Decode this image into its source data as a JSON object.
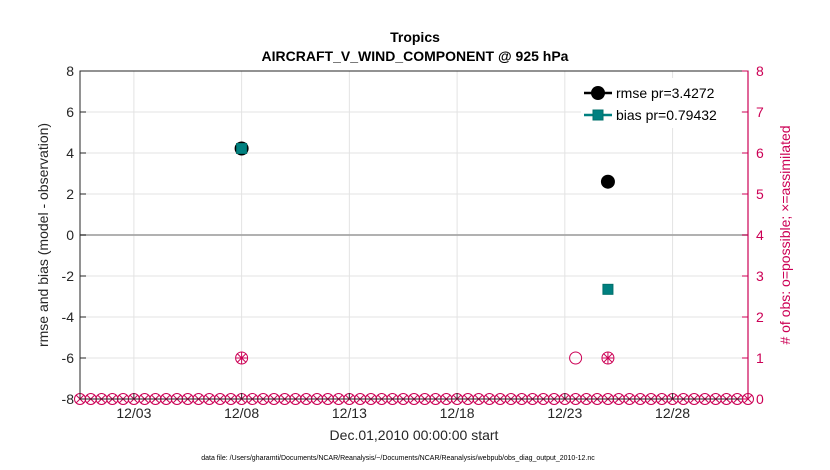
{
  "chart_data": {
    "type": "line",
    "title": "Tropics",
    "subtitle": "AIRCRAFT_V_WIND_COMPONENT @ 925 hPa",
    "xlabel": "Dec.01,2010 00:00:00 start",
    "ylabel": "rmse and bias (model - observation)",
    "y2label": "# of obs: o=possible; ×=assimilated",
    "footnote": "data file: /Users/gharamti/Documents/NCAR/Reanalysis/~/Documents/NCAR/Reanalysis/webpub/obs_diag_output_2010-12.nc",
    "xlim": [
      0.5,
      31.5
    ],
    "ylim": [
      -8,
      8
    ],
    "y2lim": [
      0,
      8
    ],
    "x_ticks": [
      3,
      8,
      13,
      18,
      23,
      28
    ],
    "x_tick_labels": [
      "12/03",
      "12/08",
      "12/13",
      "12/18",
      "12/23",
      "12/28"
    ],
    "y_ticks": [
      -8,
      -6,
      -4,
      -2,
      0,
      2,
      4,
      6,
      8
    ],
    "y_tick_labels": [
      "-8",
      "-6",
      "-4",
      "-2",
      "0",
      "2",
      "4",
      "6",
      "8"
    ],
    "y2_ticks": [
      0,
      1,
      2,
      3,
      4,
      5,
      6,
      7,
      8
    ],
    "y2_tick_labels": [
      "0",
      "1",
      "2",
      "3",
      "4",
      "5",
      "6",
      "7",
      "8"
    ],
    "zero_line": 0,
    "series": [
      {
        "name": "rmse",
        "legend": "rmse pr=3.4272",
        "color": "#000000",
        "marker": "circle",
        "axis": "left",
        "points": [
          {
            "x": 8,
            "y": 4.22
          },
          {
            "x": 25,
            "y": 2.6
          }
        ]
      },
      {
        "name": "bias",
        "legend": "bias pr=0.79432",
        "color": "#008080",
        "marker": "square",
        "axis": "left",
        "points": [
          {
            "x": 8,
            "y": 4.22
          },
          {
            "x": 25,
            "y": -2.65
          }
        ]
      },
      {
        "name": "obs_possible",
        "color": "#cc0055",
        "marker": "o",
        "axis": "right",
        "points": [
          {
            "x": 8,
            "y": 1
          },
          {
            "x": 23.5,
            "y": 1
          },
          {
            "x": 25,
            "y": 1
          }
        ]
      },
      {
        "name": "obs_assimilated",
        "color": "#cc0055",
        "marker": "x",
        "axis": "right",
        "points": [
          {
            "x": 8,
            "y": 1
          },
          {
            "x": 25,
            "y": 1
          }
        ]
      }
    ],
    "zero_count_markers": {
      "axis": "right",
      "y": 0,
      "x_start": 0.5,
      "x_end": 31.5,
      "step": 0.5,
      "color": "#cc0055"
    },
    "legend_position": "top-right",
    "grid": true
  }
}
